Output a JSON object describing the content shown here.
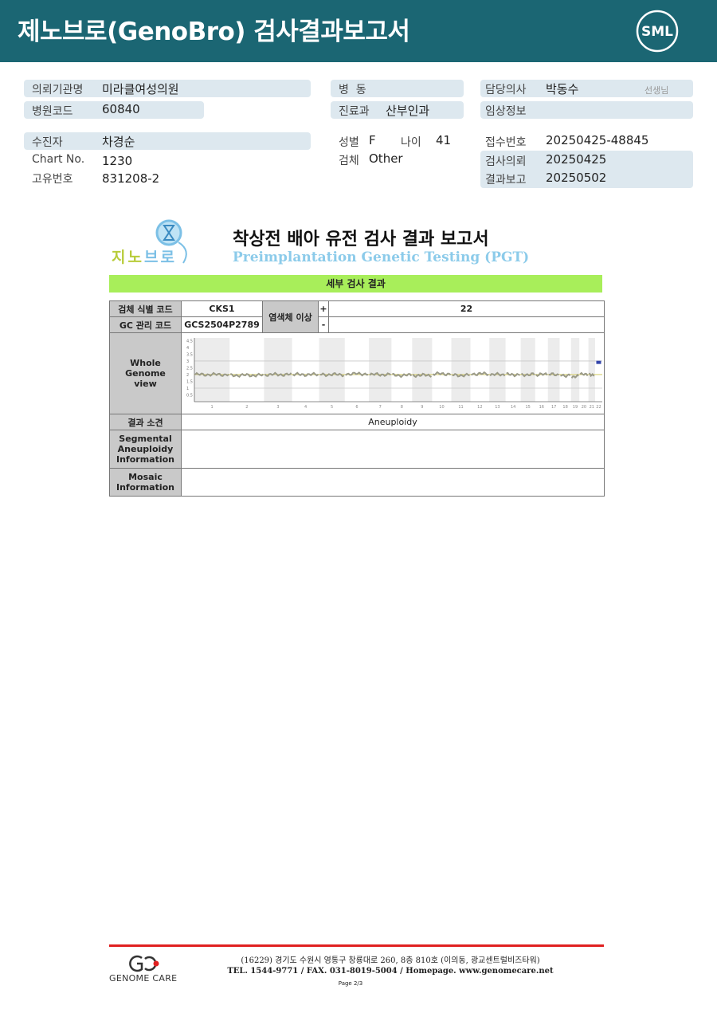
{
  "header": {
    "title": "제노브로(GenoBro) 검사결과보고서",
    "logo_text": "SML"
  },
  "info": {
    "institution": {
      "label": "의뢰기관명",
      "value": "미라클여성의원"
    },
    "hospital_code": {
      "label": "병원코드",
      "value": "60840"
    },
    "ward": {
      "label": "병  동",
      "value": ""
    },
    "department": {
      "label": "진료과",
      "value": "산부인과"
    },
    "doctor": {
      "label": "담당의사",
      "value": "박동수",
      "suffix": "선생님"
    },
    "clinical_info": {
      "label": "임상정보",
      "value": ""
    },
    "patient": {
      "label": "수진자",
      "value": "차경순"
    },
    "chart_no": {
      "label": "Chart No.",
      "value": "1230"
    },
    "unique_no": {
      "label": "고유번호",
      "value": "831208-2"
    },
    "sex": {
      "label": "성별",
      "value": "F"
    },
    "age": {
      "label": "나이",
      "value": "41"
    },
    "specimen": {
      "label": "검체",
      "value": "Other"
    },
    "receipt_no": {
      "label": "접수번호",
      "value": "20250425-48845"
    },
    "request_date": {
      "label": "검사의뢰",
      "value": "20250425"
    },
    "report_date": {
      "label": "결과보고",
      "value": "20250502"
    }
  },
  "report": {
    "logo_text": "지노브로",
    "title": "착상전 배아 유전 검사 결과 보고서",
    "subtitle": "Preimplantation Genetic Testing (PGT)",
    "section": "세부 검사 결과",
    "table": {
      "sample_id_label": "검체 식별 코드",
      "sample_id": "CKS1",
      "gc_label": "GC 관리 코드",
      "gc_code": "GCS2504P2789",
      "abnormal_label": "염색체 이상",
      "plus": "+",
      "plus_value": "22",
      "minus": "-",
      "minus_value": "",
      "genome_label": "Whole Genome view",
      "result_label": "결과 소견",
      "result": "Aneuploidy",
      "segmental_label": "Segmental Aneuploidy Information",
      "segmental": "",
      "mosaic_label": "Mosaic Information",
      "mosaic": ""
    }
  },
  "chart_data": {
    "type": "line",
    "title": "",
    "xlabel": "",
    "ylabel": "",
    "categories": [
      "1",
      "2",
      "3",
      "4",
      "5",
      "6",
      "7",
      "8",
      "9",
      "10",
      "11",
      "12",
      "13",
      "14",
      "15",
      "16",
      "17",
      "18",
      "19",
      "20",
      "21",
      "22"
    ],
    "values": [
      2.0,
      1.95,
      2.0,
      2.0,
      2.0,
      2.05,
      2.0,
      1.95,
      1.95,
      2.05,
      1.95,
      2.05,
      2.0,
      2.0,
      2.0,
      2.0,
      2.0,
      1.95,
      1.85,
      2.0,
      2.0,
      2.9
    ],
    "yticks": [
      "0.5",
      "1",
      "1.5",
      "2",
      "2.5",
      "3",
      "3.5",
      "4",
      "4.5"
    ],
    "ylim": [
      0,
      4.7
    ],
    "reference_lines": [
      1,
      2,
      3
    ],
    "colors": {
      "line": "#9a9a88",
      "baseline": "#d8d070",
      "abnormal": "#3344aa"
    }
  },
  "footer": {
    "company": "GENOME CARE",
    "address": "(16229) 경기도 수원시 영통구 창룡대로 260, 8층 810호 (이의동, 광교센트럴비즈타워)",
    "contact": "TEL. 1544-9771 / FAX. 031-8019-5004 / Homepage. www.genomecare.net",
    "page": "Page 2/3"
  }
}
